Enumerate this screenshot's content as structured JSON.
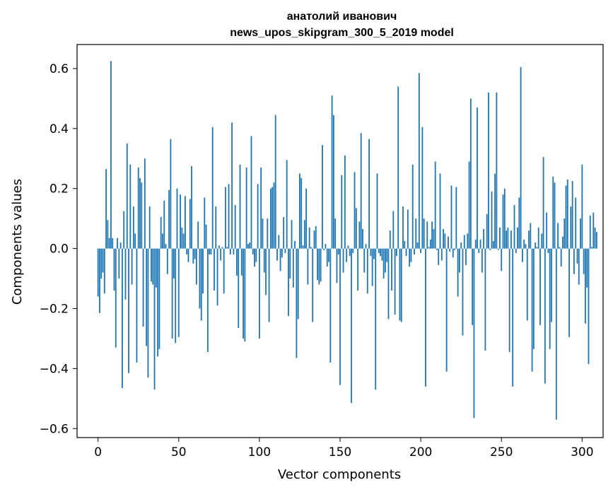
{
  "chart_data": {
    "type": "bar",
    "title": "анатолий иванович",
    "subtitle": "news_upos_skipgram_300_5_2019 model",
    "xlabel": "Vector components",
    "ylabel": "Components values",
    "xlim": [
      -13,
      313
    ],
    "ylim": [
      -0.63,
      0.68
    ],
    "xticks": [
      0,
      50,
      100,
      150,
      200,
      250,
      300
    ],
    "yticks": [
      -0.6,
      -0.4,
      -0.2,
      0.0,
      0.2,
      0.4,
      0.6
    ],
    "xtick_labels": [
      "0",
      "50",
      "100",
      "150",
      "200",
      "250",
      "300"
    ],
    "ytick_labels": [
      "−0.6",
      "−0.4",
      "−0.2",
      "0.0",
      "0.2",
      "0.4",
      "0.6"
    ],
    "bar_color": "#1f77b4",
    "grid": false,
    "values": [
      -0.16,
      -0.215,
      -0.1,
      -0.08,
      -0.15,
      0.265,
      0.095,
      0.035,
      0.625,
      0.035,
      -0.14,
      -0.33,
      0.035,
      -0.1,
      0.02,
      -0.465,
      0.125,
      -0.17,
      0.35,
      -0.415,
      0.28,
      -0.12,
      0.14,
      0.05,
      -0.38,
      0.27,
      0.235,
      0.22,
      -0.26,
      0.3,
      -0.325,
      -0.43,
      0.14,
      -0.11,
      -0.12,
      -0.47,
      -0.13,
      -0.36,
      -0.335,
      0.105,
      0.05,
      0.16,
      0.015,
      -0.085,
      0.195,
      0.365,
      -0.3,
      -0.1,
      -0.315,
      0.2,
      -0.295,
      0.18,
      0.07,
      0.05,
      0.175,
      -0.02,
      -0.045,
      0.165,
      0.275,
      -0.05,
      -0.035,
      -0.12,
      0.09,
      -0.2,
      -0.24,
      -0.15,
      0.17,
      0.08,
      -0.345,
      -0.02,
      -0.02,
      0.405,
      -0.14,
      0.14,
      -0.19,
      0.01,
      -0.04,
      0.005,
      -0.15,
      0.205,
      0.005,
      0.215,
      -0.02,
      0.42,
      -0.02,
      0.145,
      -0.09,
      -0.265,
      0.28,
      -0.09,
      -0.3,
      -0.31,
      0.27,
      0.015,
      0.02,
      0.375,
      -0.02,
      -0.06,
      -0.045,
      0.215,
      -0.3,
      0.27,
      0.1,
      -0.08,
      -0.155,
      0.1,
      -0.245,
      0.2,
      0.205,
      0.22,
      0.445,
      -0.04,
      0.045,
      -0.075,
      -0.03,
      0.105,
      -0.015,
      0.295,
      -0.225,
      -0.1,
      0.095,
      -0.13,
      0.025,
      -0.365,
      -0.235,
      0.25,
      0.235,
      0.01,
      0.095,
      0.2,
      -0.12,
      0.07,
      0.005,
      -0.245,
      0.06,
      0.075,
      -0.105,
      -0.12,
      -0.11,
      0.345,
      -0.005,
      0.015,
      -0.06,
      -0.045,
      -0.38,
      0.51,
      0.445,
      0.1,
      -0.115,
      -0.02,
      -0.455,
      0.245,
      -0.08,
      0.31,
      -0.045,
      0.01,
      -0.025,
      -0.515,
      -0.015,
      0.255,
      0.135,
      -0.14,
      0.09,
      0.385,
      0.065,
      -0.08,
      0.015,
      -0.15,
      0.365,
      -0.025,
      -0.125,
      -0.035,
      -0.47,
      0.25,
      -0.015,
      -0.025,
      -0.04,
      -0.1,
      -0.08,
      -0.045,
      -0.235,
      0.06,
      -0.14,
      0.125,
      -0.22,
      -0.025,
      0.54,
      -0.24,
      -0.245,
      0.14,
      0.025,
      -0.025,
      0.13,
      -0.06,
      -0.045,
      0.28,
      -0.02,
      0.1,
      0.02,
      0.585,
      -0.015,
      0.405,
      0.1,
      -0.46,
      0.09,
      0.005,
      0.03,
      0.09,
      0.065,
      0.29,
      -0.005,
      -0.055,
      0.25,
      -0.04,
      0.065,
      0.05,
      -0.41,
      0.04,
      -0.01,
      0.21,
      -0.03,
      -0.005,
      0.205,
      -0.16,
      -0.08,
      0.02,
      -0.29,
      0.045,
      -0.055,
      0.05,
      0.29,
      0.5,
      -0.255,
      -0.565,
      0.03,
      0.47,
      -0.015,
      0.03,
      -0.08,
      0.065,
      -0.34,
      0.115,
      0.52,
      -0.005,
      0.19,
      0.025,
      0.25,
      0.52,
      -0.005,
      0.07,
      -0.075,
      0.18,
      0.2,
      0.06,
      0.07,
      -0.345,
      0.06,
      -0.46,
      0.145,
      -0.015,
      0.07,
      0.17,
      0.605,
      -0.045,
      0.03,
      0.015,
      -0.24,
      0.06,
      0.085,
      -0.41,
      -0.335,
      0.02,
      0.005,
      0.07,
      -0.255,
      0.05,
      0.305,
      -0.45,
      0.12,
      -0.015,
      -0.335,
      -0.245,
      0.24,
      0.22,
      -0.57,
      0.085,
      0.005,
      -0.06,
      0.04,
      0.1,
      0.21,
      0.23,
      -0.295,
      0.14,
      0.225,
      -0.085,
      0.17,
      -0.05,
      -0.12,
      0.1,
      0.28,
      -0.085,
      -0.25,
      -0.13,
      -0.385,
      0.11,
      0.005,
      0.12,
      0.07,
      0.055
    ]
  }
}
